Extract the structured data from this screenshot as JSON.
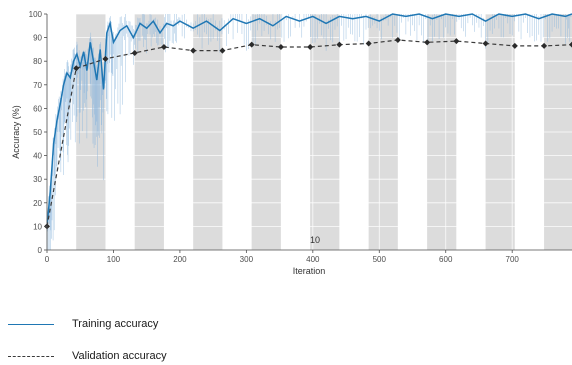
{
  "chart_data": {
    "type": "line",
    "xlabel": "Iteration",
    "ylabel": "Accuracy (%)",
    "xlim": [
      0,
      790
    ],
    "ylim": [
      0,
      100
    ],
    "xticks": [
      0,
      100,
      200,
      300,
      400,
      500,
      600,
      700
    ],
    "yticks": [
      0,
      10,
      20,
      30,
      40,
      50,
      60,
      70,
      80,
      90,
      100
    ],
    "grid": true,
    "annotation": "10",
    "epoch_band_edges": [
      0,
      44,
      88,
      132,
      176,
      220,
      264,
      308,
      352,
      396,
      440,
      484,
      528,
      572,
      616,
      660,
      704,
      748,
      790
    ],
    "series": [
      {
        "name": "Training accuracy",
        "style": "solid",
        "color": "#1f77b4",
        "x": [
          0,
          5,
          10,
          15,
          20,
          25,
          30,
          35,
          40,
          45,
          50,
          55,
          60,
          65,
          70,
          75,
          80,
          85,
          90,
          95,
          100,
          110,
          120,
          130,
          140,
          150,
          160,
          170,
          180,
          190,
          200,
          220,
          240,
          260,
          280,
          300,
          320,
          340,
          360,
          380,
          400,
          420,
          440,
          460,
          480,
          500,
          520,
          540,
          560,
          580,
          600,
          620,
          640,
          660,
          680,
          700,
          720,
          740,
          760,
          780,
          790
        ],
        "values": [
          10,
          25,
          45,
          55,
          62,
          70,
          75,
          73,
          80,
          83,
          78,
          84,
          76,
          88,
          80,
          72,
          85,
          68,
          92,
          96,
          88,
          93,
          95,
          90,
          96,
          94,
          97,
          92,
          96,
          95,
          97,
          94,
          97,
          93,
          98,
          96,
          98,
          95,
          99,
          97,
          99,
          96,
          99,
          98,
          99,
          97,
          100,
          99,
          100,
          98,
          100,
          99,
          100,
          97,
          100,
          99,
          100,
          98,
          100,
          99,
          100
        ]
      },
      {
        "name": "Validation accuracy",
        "style": "dashed",
        "color": "#3a3a3a",
        "x": [
          0,
          44,
          88,
          132,
          176,
          220,
          264,
          308,
          352,
          396,
          440,
          484,
          528,
          572,
          616,
          660,
          704,
          748,
          790
        ],
        "values": [
          10,
          77,
          81,
          83.5,
          86,
          84.5,
          84.5,
          87,
          86,
          86,
          87,
          87.5,
          89,
          88,
          88.5,
          87.5,
          86.5,
          86.5,
          87
        ]
      }
    ]
  },
  "legend": {
    "training_label": "Training accuracy",
    "validation_label": "Validation accuracy"
  }
}
